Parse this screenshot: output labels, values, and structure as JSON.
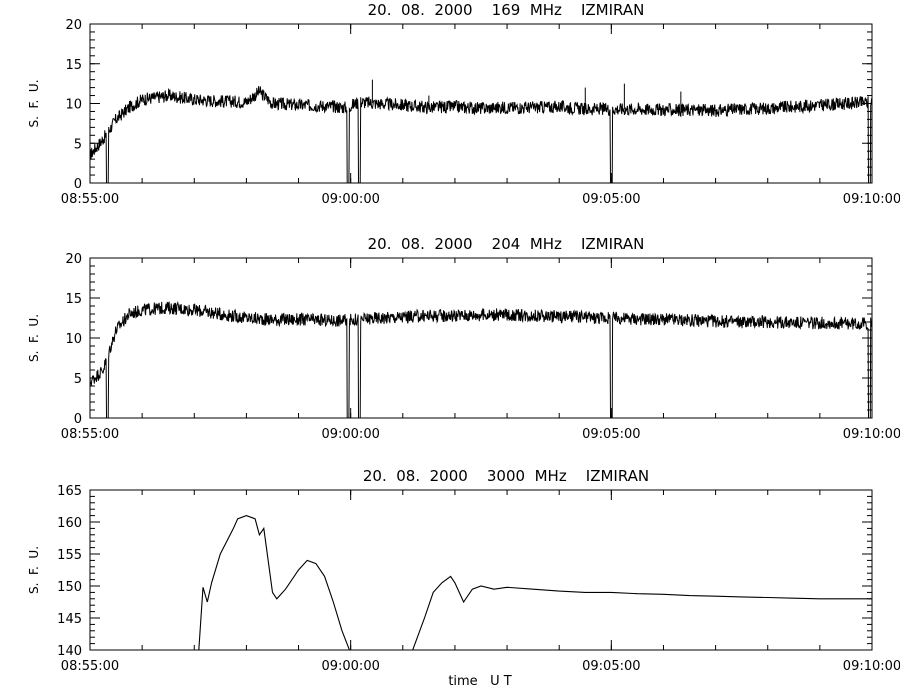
{
  "figure": {
    "xlabel": "time   U T"
  },
  "chart_data": [
    {
      "type": "line",
      "title": "20.  08.  2000    169  MHz    IZMIRAN",
      "ylabel": "S.  F.  U.",
      "xlabel": "",
      "x_range": [
        "08:55:00",
        "09:10:00"
      ],
      "x_ticks": [
        "08:55:00",
        "09:00:00",
        "09:05:00",
        "09:10:00"
      ],
      "ylim": [
        0,
        20
      ],
      "y_ticks": [
        0,
        5,
        10,
        15,
        20
      ],
      "grid": false,
      "series": [
        {
          "x": [
            "08:55:00",
            "08:55:15",
            "08:55:30",
            "08:55:45",
            "08:56:00",
            "08:56:30",
            "08:57:00",
            "08:57:30",
            "08:58:00",
            "08:58:15",
            "08:58:30",
            "08:59:00",
            "08:59:30",
            "08:59:55",
            "09:00:10",
            "09:00:30",
            "09:01:00",
            "09:01:30",
            "09:02:00",
            "09:02:30",
            "09:03:00",
            "09:03:30",
            "09:04:00",
            "09:04:30",
            "09:05:00",
            "09:05:30",
            "09:06:00",
            "09:06:30",
            "09:07:00",
            "09:07:30",
            "09:08:00",
            "09:08:30",
            "09:09:00",
            "09:09:30",
            "09:10:00"
          ],
          "y": [
            3.5,
            5.5,
            8.0,
            9.5,
            10.5,
            11.0,
            10.5,
            10.3,
            10.2,
            11.5,
            10.0,
            9.8,
            9.7,
            9.5,
            10.2,
            10.0,
            9.8,
            9.5,
            9.6,
            9.4,
            9.5,
            9.5,
            9.6,
            9.3,
            9.3,
            9.3,
            9.2,
            9.2,
            9.1,
            9.3,
            9.4,
            9.6,
            9.8,
            10.0,
            10.2
          ]
        }
      ],
      "dropouts": [
        "08:55:20",
        "08:59:57",
        "09:00:10",
        "09:05:00",
        "09:09:57"
      ],
      "spikes": [
        {
          "x": "09:00:25",
          "y": 13.0
        },
        {
          "x": "09:04:30",
          "y": 12.0
        },
        {
          "x": "09:05:15",
          "y": 12.5
        },
        {
          "x": "09:06:20",
          "y": 11.5
        },
        {
          "x": "09:01:30",
          "y": 11.0
        }
      ]
    },
    {
      "type": "line",
      "title": "20.  08.  2000    204  MHz    IZMIRAN",
      "ylabel": "S.  F.  U.",
      "xlabel": "",
      "x_range": [
        "08:55:00",
        "09:10:00"
      ],
      "x_ticks": [
        "08:55:00",
        "09:00:00",
        "09:05:00",
        "09:10:00"
      ],
      "ylim": [
        0,
        20
      ],
      "y_ticks": [
        0,
        5,
        10,
        15,
        20
      ],
      "grid": false,
      "series": [
        {
          "x": [
            "08:55:00",
            "08:55:15",
            "08:55:30",
            "08:55:45",
            "08:56:00",
            "08:56:30",
            "08:57:00",
            "08:57:30",
            "08:58:00",
            "08:58:30",
            "08:59:00",
            "08:59:30",
            "08:59:55",
            "09:00:10",
            "09:00:30",
            "09:01:00",
            "09:01:30",
            "09:02:00",
            "09:02:30",
            "09:03:00",
            "09:03:30",
            "09:04:00",
            "09:04:30",
            "09:05:00",
            "09:05:30",
            "09:06:00",
            "09:06:30",
            "09:07:00",
            "09:07:30",
            "09:08:00",
            "09:08:30",
            "09:09:00",
            "09:09:30",
            "09:10:00"
          ],
          "y": [
            4.5,
            6.0,
            11.0,
            13.0,
            13.5,
            13.8,
            13.5,
            13.0,
            12.5,
            12.3,
            12.3,
            12.2,
            12.2,
            12.3,
            12.5,
            12.6,
            12.8,
            12.8,
            12.9,
            12.9,
            12.8,
            12.7,
            12.6,
            12.5,
            12.4,
            12.3,
            12.2,
            12.1,
            12.0,
            12.0,
            11.9,
            11.9,
            11.8,
            11.8
          ]
        }
      ],
      "dropouts": [
        "08:55:20",
        "08:59:57",
        "09:00:10",
        "09:05:00",
        "09:09:57"
      ],
      "spikes": []
    },
    {
      "type": "line",
      "title": "20.  08.  2000    3000  MHz    IZMIRAN",
      "ylabel": "S.  F.  U.",
      "xlabel": "",
      "x_range": [
        "08:55:00",
        "09:10:00"
      ],
      "x_ticks": [
        "08:55:00",
        "09:00:00",
        "09:05:00",
        "09:10:00"
      ],
      "ylim": [
        140,
        165
      ],
      "y_ticks": [
        140,
        145,
        150,
        155,
        160,
        165
      ],
      "grid": false,
      "series": [
        {
          "segments": [
            {
              "x": [
                "08:57:05",
                "08:57:10",
                "08:57:15",
                "08:57:20",
                "08:57:30",
                "08:57:45",
                "08:57:50",
                "08:58:00",
                "08:58:10",
                "08:58:15",
                "08:58:20",
                "08:58:30",
                "08:58:35",
                "08:58:45",
                "08:59:00",
                "08:59:10",
                "08:59:20",
                "08:59:30",
                "08:59:40",
                "08:59:50",
                "09:00:00"
              ],
              "y": [
                139.5,
                149.8,
                147.5,
                150.5,
                155.0,
                159.0,
                160.5,
                161.0,
                160.5,
                158.0,
                159.0,
                149.0,
                148.0,
                149.5,
                152.5,
                154.0,
                153.5,
                151.5,
                147.5,
                143.0,
                139.5
              ]
            },
            {
              "x": [
                "09:01:10",
                "09:01:25",
                "09:01:35",
                "09:01:45",
                "09:01:55",
                "09:02:00",
                "09:02:10",
                "09:02:20",
                "09:02:30",
                "09:02:45",
                "09:03:00",
                "09:03:30",
                "09:04:00",
                "09:04:30",
                "09:05:00",
                "09:05:30",
                "09:06:00",
                "09:06:30",
                "09:07:00",
                "09:07:30",
                "09:08:00",
                "09:08:30",
                "09:09:00",
                "09:09:30",
                "09:10:00"
              ],
              "y": [
                139.5,
                145.0,
                149.0,
                150.5,
                151.5,
                150.5,
                147.5,
                149.5,
                150.0,
                149.5,
                149.8,
                149.5,
                149.2,
                149.0,
                149.0,
                148.8,
                148.7,
                148.5,
                148.4,
                148.3,
                148.2,
                148.1,
                148.0,
                148.0,
                148.0
              ]
            }
          ]
        }
      ]
    }
  ]
}
